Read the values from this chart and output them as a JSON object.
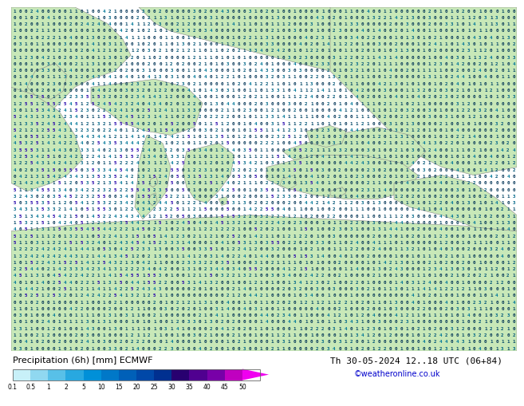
{
  "title_left": "Precipitation (6h) [mm] ECMWF",
  "title_right": "Th 30-05-2024 12..18 UTC (06+84)",
  "credit": "©weatheronline.co.uk",
  "colorbar_ticks": [
    0.1,
    0.5,
    1,
    2,
    5,
    10,
    15,
    20,
    25,
    30,
    35,
    40,
    45,
    50
  ],
  "colorbar_tick_labels": [
    "0.1",
    "0.5",
    "1",
    "2",
    "5",
    "10",
    "15",
    "20",
    "25",
    "30",
    "35",
    "40",
    "45",
    "50"
  ],
  "colorbar_colors": [
    "#c8f0f8",
    "#90d8f0",
    "#58c0e8",
    "#28a8e0",
    "#0090d8",
    "#0078c8",
    "#0060b8",
    "#0048a8",
    "#003090",
    "#280070",
    "#500090",
    "#7800a8",
    "#c000c0",
    "#f000f0"
  ],
  "sea_color": "#a8d8e8",
  "land_color": "#c8e8b8",
  "border_color": "#888888",
  "number_color_low": "#003366",
  "number_color_mid": "#004488",
  "background_color": "#ffffff",
  "fig_width": 6.34,
  "fig_height": 4.9,
  "number_fontsize": 4.2
}
